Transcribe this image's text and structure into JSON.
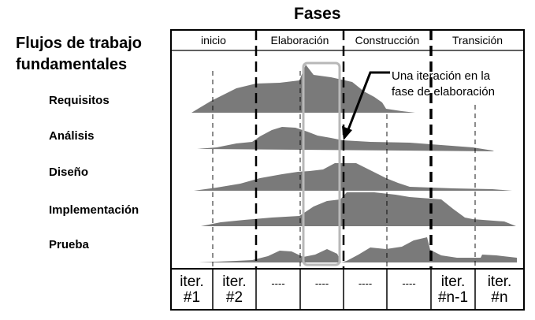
{
  "title": "Fases",
  "workflows_heading": [
    "Flujos de trabajo",
    "fundamentales"
  ],
  "workflows": [
    "Requisitos",
    "Análisis",
    "Diseño",
    "Implementación",
    "Prueba"
  ],
  "phases": [
    "inicio",
    "Elaboración",
    "Construcción",
    "Transición"
  ],
  "iterations": [
    [
      "iter.",
      "#1"
    ],
    [
      "iter.",
      "#2"
    ],
    [
      "----"
    ],
    [
      "----"
    ],
    [
      "----"
    ],
    [
      "----"
    ],
    [
      "iter.",
      "#n-1"
    ],
    [
      "iter.",
      "#n"
    ]
  ],
  "annotation": [
    "Una iteración en la",
    "fase de elaboración"
  ],
  "colors": {
    "curve_fill": "#7a7a7a",
    "highlight": "#b8b8b8"
  }
}
